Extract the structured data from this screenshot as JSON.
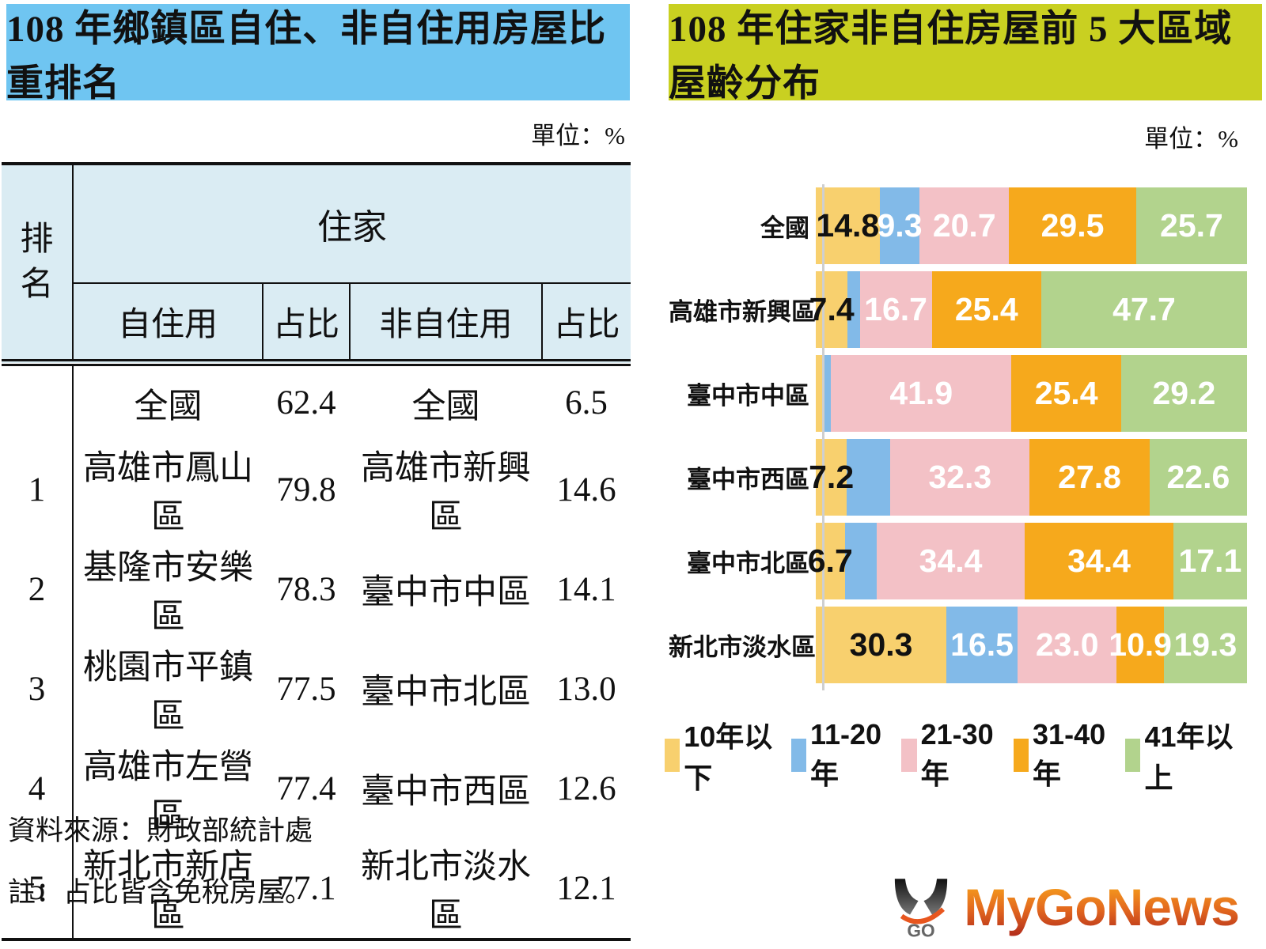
{
  "left_panel": {
    "title": "108 年鄉鎮區自住、非自住用房屋比重排名",
    "unit_label": "單位：%",
    "table": {
      "rank_header": "排名",
      "group_header": "住家",
      "col_headers": [
        "自住用",
        "占比",
        "非自住用",
        "占比"
      ],
      "rows": [
        {
          "rank": "",
          "owner": "全國",
          "owner_pct": "62.4",
          "non_owner": "全國",
          "non_owner_pct": "6.5"
        },
        {
          "rank": "1",
          "owner": "高雄市鳳山區",
          "owner_pct": "79.8",
          "non_owner": "高雄市新興區",
          "non_owner_pct": "14.6"
        },
        {
          "rank": "2",
          "owner": "基隆市安樂區",
          "owner_pct": "78.3",
          "non_owner": "臺中市中區",
          "non_owner_pct": "14.1"
        },
        {
          "rank": "3",
          "owner": "桃園市平鎮區",
          "owner_pct": "77.5",
          "non_owner": "臺中市北區",
          "non_owner_pct": "13.0"
        },
        {
          "rank": "4",
          "owner": "高雄市左營區",
          "owner_pct": "77.4",
          "non_owner": "臺中市西區",
          "non_owner_pct": "12.6"
        },
        {
          "rank": "5",
          "owner": "新北市新店區",
          "owner_pct": "77.1",
          "non_owner": "新北市淡水區",
          "non_owner_pct": "12.1"
        }
      ]
    },
    "source_note": "資料來源：財政部統計處",
    "footnote": "註：占比皆含免稅房屋。"
  },
  "right_panel": {
    "title": "108 年住家非自住房屋前 5 大區域屋齡分布",
    "unit_label": "單位：%"
  },
  "chart_data": {
    "type": "bar",
    "stacked": true,
    "orientation": "horizontal",
    "title": "108 年住家非自住房屋前 5 大區域屋齡分布",
    "unit": "%",
    "xlim": [
      0,
      100
    ],
    "legend_position": "bottom",
    "categories": [
      "全國",
      "高雄市新興區",
      "臺中市中區",
      "臺中市西區",
      "臺中市北區",
      "新北市淡水區"
    ],
    "series": [
      {
        "name": "10年以下",
        "color": "#F8D06E",
        "label_color": "#111111",
        "values": [
          14.8,
          7.4,
          1.5,
          7.2,
          6.7,
          30.3
        ],
        "labels": [
          "14.8",
          "7.4",
          "",
          "7.2",
          "6.7",
          "30.3"
        ]
      },
      {
        "name": "11-20年",
        "color": "#82BAE8",
        "label_color": "#ffffff",
        "values": [
          9.3,
          2.8,
          2.0,
          10.1,
          7.4,
          16.5
        ],
        "labels": [
          "9.3",
          "",
          "",
          "",
          "",
          "16.5"
        ]
      },
      {
        "name": "21-30年",
        "color": "#F3C1C6",
        "label_color": "#ffffff",
        "values": [
          20.7,
          16.7,
          41.9,
          32.3,
          34.4,
          23.0
        ],
        "labels": [
          "20.7",
          "16.7",
          "41.9",
          "32.3",
          "34.4",
          "23.0"
        ]
      },
      {
        "name": "31-40年",
        "color": "#F6A91C",
        "label_color": "#ffffff",
        "values": [
          29.5,
          25.4,
          25.4,
          27.8,
          34.4,
          10.9
        ],
        "labels": [
          "29.5",
          "25.4",
          "25.4",
          "27.8",
          "34.4",
          "10.9"
        ]
      },
      {
        "name": "41年以上",
        "color": "#B2D38D",
        "label_color": "#ffffff",
        "values": [
          25.7,
          47.7,
          29.2,
          22.6,
          17.1,
          19.3
        ],
        "labels": [
          "25.7",
          "47.7",
          "29.2",
          "22.6",
          "17.1",
          "19.3"
        ]
      }
    ]
  },
  "logo": {
    "name": "MyGoNews",
    "mark_text": "GO"
  },
  "colors": {
    "left_header_bg": "#6FC5F1",
    "right_header_bg": "#C9D021",
    "table_header_bg": "#DAECF3",
    "axis_line": "#CFCFCF",
    "logo_gradient_top": "#F7A11D",
    "logo_gradient_bottom": "#B5301C"
  }
}
